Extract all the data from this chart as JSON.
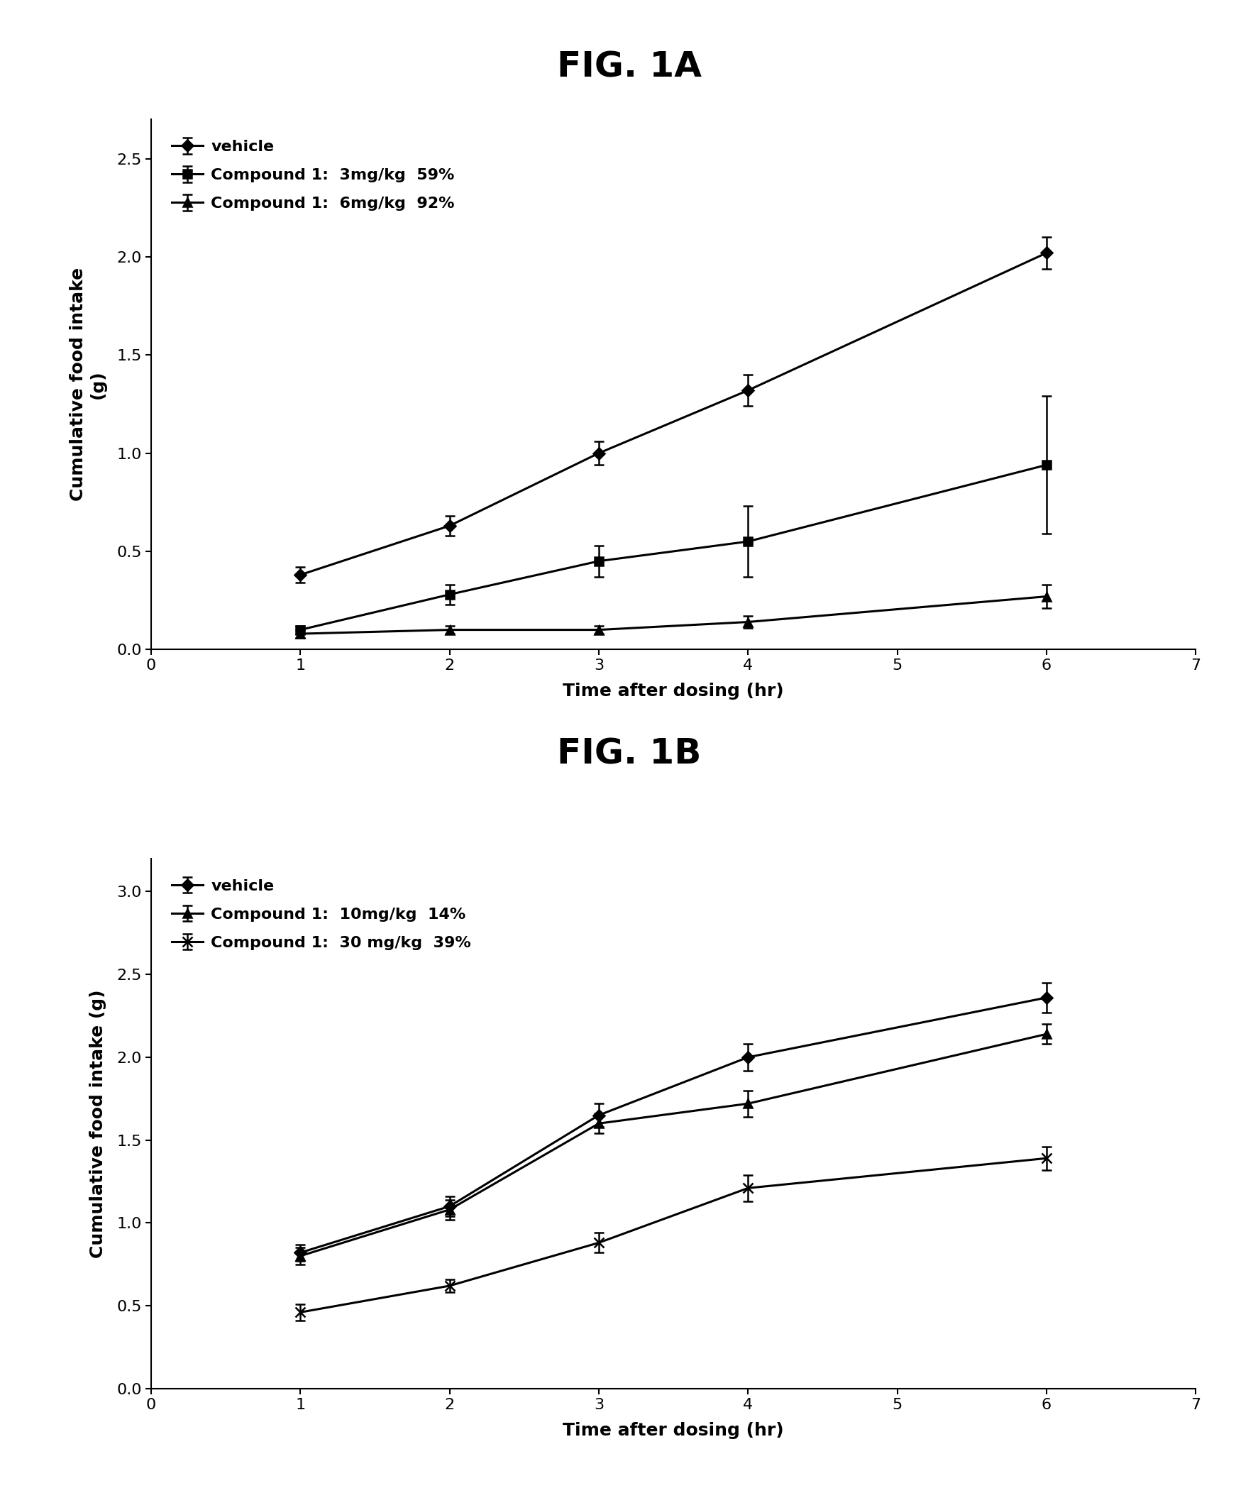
{
  "fig1a": {
    "title": "FIG. 1A",
    "xlabel": "Time after dosing (hr)",
    "ylabel": "Cumulative food intake\n(g)",
    "xlim": [
      0,
      7
    ],
    "ylim": [
      0,
      2.7
    ],
    "yticks": [
      0.0,
      0.5,
      1.0,
      1.5,
      2.0,
      2.5
    ],
    "xticks": [
      0,
      1,
      2,
      3,
      4,
      5,
      6,
      7
    ],
    "series": [
      {
        "label": "vehicle",
        "x": [
          1,
          2,
          3,
          4,
          6
        ],
        "y": [
          0.38,
          0.63,
          1.0,
          1.32,
          2.02
        ],
        "yerr": [
          0.04,
          0.05,
          0.06,
          0.08,
          0.08
        ],
        "marker": "D",
        "linestyle": "-",
        "color": "#000000",
        "markersize": 8
      },
      {
        "label": "Compound 1:  3mg/kg  59%",
        "x": [
          1,
          2,
          3,
          4,
          6
        ],
        "y": [
          0.1,
          0.28,
          0.45,
          0.55,
          0.94
        ],
        "yerr": [
          0.02,
          0.05,
          0.08,
          0.18,
          0.35
        ],
        "marker": "s",
        "linestyle": "-",
        "color": "#000000",
        "markersize": 8
      },
      {
        "label": "Compound 1:  6mg/kg  92%",
        "x": [
          1,
          2,
          3,
          4,
          6
        ],
        "y": [
          0.08,
          0.1,
          0.1,
          0.14,
          0.27
        ],
        "yerr": [
          0.02,
          0.02,
          0.02,
          0.03,
          0.06
        ],
        "marker": "^",
        "linestyle": "-",
        "color": "#000000",
        "markersize": 8
      }
    ]
  },
  "fig1b": {
    "title": "FIG. 1B",
    "xlabel": "Time after dosing (hr)",
    "ylabel": "Cumulative food intake (g)",
    "xlim": [
      0,
      7
    ],
    "ylim": [
      0,
      3.2
    ],
    "yticks": [
      0.0,
      0.5,
      1.0,
      1.5,
      2.0,
      2.5,
      3.0
    ],
    "xticks": [
      0,
      1,
      2,
      3,
      4,
      5,
      6,
      7
    ],
    "series": [
      {
        "label": "vehicle",
        "x": [
          1,
          2,
          3,
          4,
          6
        ],
        "y": [
          0.82,
          1.1,
          1.65,
          2.0,
          2.36
        ],
        "yerr": [
          0.05,
          0.06,
          0.07,
          0.08,
          0.09
        ],
        "marker": "D",
        "linestyle": "-",
        "color": "#000000",
        "markersize": 8
      },
      {
        "label": "Compound 1:  10mg/kg  14%",
        "x": [
          1,
          2,
          3,
          4,
          6
        ],
        "y": [
          0.8,
          1.08,
          1.6,
          1.72,
          2.14
        ],
        "yerr": [
          0.05,
          0.06,
          0.06,
          0.08,
          0.06
        ],
        "marker": "^",
        "linestyle": "-",
        "color": "#000000",
        "markersize": 8
      },
      {
        "label": "Compound 1:  30 mg/kg  39%",
        "x": [
          1,
          2,
          3,
          4,
          6
        ],
        "y": [
          0.46,
          0.62,
          0.88,
          1.21,
          1.39
        ],
        "yerr": [
          0.05,
          0.04,
          0.06,
          0.08,
          0.07
        ],
        "marker": "x",
        "linestyle": "-",
        "color": "#000000",
        "markersize": 10
      }
    ]
  },
  "background_color": "#ffffff",
  "title_fontsize": 36,
  "label_fontsize": 18,
  "tick_fontsize": 16,
  "legend_fontsize": 16
}
